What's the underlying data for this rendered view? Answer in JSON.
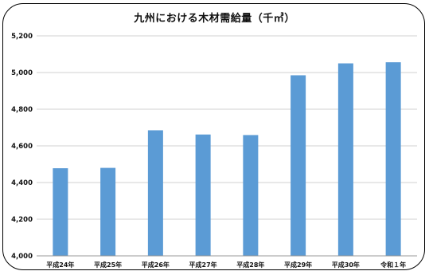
{
  "chart_data": {
    "type": "bar",
    "title": "九州における木材需給量（千㎥）",
    "categories": [
      "平成24年",
      "平成25年",
      "平成26年",
      "平成27年",
      "平成28年",
      "平成29年",
      "平成30年",
      "令和１年"
    ],
    "values": [
      4478,
      4480,
      4685,
      4662,
      4659,
      4985,
      5050,
      5056
    ],
    "ylim": [
      4000,
      5200
    ],
    "yticks": [
      4000,
      4200,
      4400,
      4600,
      4800,
      5000,
      5200
    ],
    "ytick_labels": [
      "4,000",
      "4,200",
      "4,400",
      "4,600",
      "4,800",
      "5,000",
      "5,200"
    ],
    "xlabel": "",
    "ylabel": "",
    "grid": true,
    "bar_color": "#5b9bd5"
  }
}
